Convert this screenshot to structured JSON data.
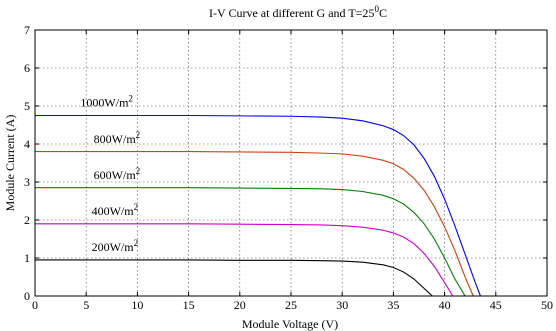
{
  "chart_data": {
    "type": "line",
    "title": "I-V Curve at different G and T=25",
    "title_sup": "0",
    "title_tail": "C",
    "xlabel": "Module Voltage (V)",
    "ylabel": "Module Current (A)",
    "xlim": [
      0,
      50
    ],
    "ylim": [
      0,
      7
    ],
    "xticks": [
      0,
      5,
      10,
      15,
      20,
      25,
      30,
      35,
      40,
      45,
      50
    ],
    "yticks": [
      0,
      1,
      2,
      3,
      4,
      5,
      6,
      7
    ],
    "grid": true,
    "series": [
      {
        "label_text": "1000W/m",
        "label_sup": "2",
        "color": "#0000ff",
        "x": [
          0,
          5,
          10,
          15,
          20,
          25,
          28,
          30,
          32,
          34,
          35,
          36,
          37,
          38,
          39,
          40,
          41,
          42,
          43,
          43.5
        ],
        "y": [
          4.75,
          4.75,
          4.75,
          4.75,
          4.74,
          4.73,
          4.71,
          4.68,
          4.61,
          4.48,
          4.38,
          4.22,
          3.98,
          3.62,
          3.15,
          2.55,
          1.85,
          1.1,
          0.35,
          0
        ]
      },
      {
        "label_text": "800W/m",
        "label_sup": "2",
        "color": "#d04010",
        "x": [
          0,
          5,
          10,
          15,
          20,
          25,
          28,
          30,
          32,
          34,
          35,
          36,
          37,
          38,
          39,
          40,
          41,
          42,
          42.8
        ],
        "y": [
          3.8,
          3.8,
          3.8,
          3.8,
          3.79,
          3.78,
          3.76,
          3.74,
          3.68,
          3.57,
          3.48,
          3.33,
          3.1,
          2.78,
          2.35,
          1.82,
          1.2,
          0.5,
          0
        ]
      },
      {
        "label_text": "600W/m",
        "label_sup": "2",
        "color": "#008000",
        "x": [
          0,
          5,
          10,
          15,
          20,
          25,
          28,
          30,
          32,
          34,
          35,
          36,
          37,
          38,
          39,
          40,
          41,
          42
        ],
        "y": [
          2.85,
          2.85,
          2.85,
          2.85,
          2.84,
          2.83,
          2.82,
          2.8,
          2.75,
          2.65,
          2.56,
          2.42,
          2.2,
          1.9,
          1.5,
          1.0,
          0.45,
          0
        ]
      },
      {
        "label_text": "400W/m",
        "label_sup": "2",
        "color": "#cc00cc",
        "x": [
          0,
          5,
          10,
          15,
          20,
          25,
          28,
          30,
          32,
          34,
          35,
          36,
          37,
          38,
          39,
          40,
          40.8
        ],
        "y": [
          1.9,
          1.9,
          1.9,
          1.9,
          1.89,
          1.88,
          1.87,
          1.85,
          1.81,
          1.73,
          1.66,
          1.55,
          1.38,
          1.12,
          0.78,
          0.35,
          0
        ]
      },
      {
        "label_text": "200W/m",
        "label_sup": "2",
        "color": "#000000",
        "x": [
          0,
          5,
          10,
          15,
          20,
          25,
          28,
          30,
          32,
          34,
          35,
          36,
          37,
          38,
          38.8
        ],
        "y": [
          0.95,
          0.95,
          0.95,
          0.95,
          0.94,
          0.94,
          0.93,
          0.92,
          0.89,
          0.82,
          0.75,
          0.63,
          0.45,
          0.2,
          0
        ]
      }
    ]
  }
}
